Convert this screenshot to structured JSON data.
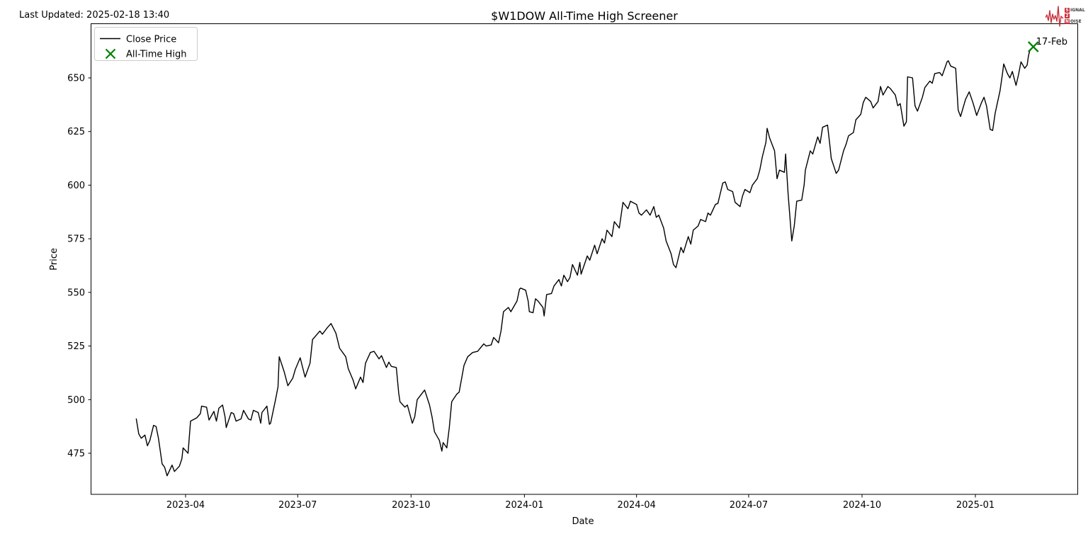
{
  "header": {
    "last_updated": "Last Updated: 2025-02-18 13:40",
    "title": "$W1DOW All-Time High Screener"
  },
  "logo": {
    "red": "#c62f39",
    "rows": [
      {
        "boxed": "S",
        "rest": "IGNAL"
      },
      {
        "boxed": "2",
        "rest": ""
      },
      {
        "boxed": "N",
        "rest": "OISE"
      }
    ]
  },
  "chart_data": {
    "type": "line",
    "title": "$W1DOW All-Time High Screener",
    "xlabel": "Date",
    "ylabel": "Price",
    "line_color": "#000000",
    "ath_color": "#008000",
    "ylim": [
      454,
      676
    ],
    "yticks": [
      475,
      500,
      525,
      550,
      575,
      600,
      625,
      650
    ],
    "xticks": [
      {
        "label": "2023-04",
        "date": "2023-04-01"
      },
      {
        "label": "2023-07",
        "date": "2023-07-01"
      },
      {
        "label": "2023-10",
        "date": "2023-10-01"
      },
      {
        "label": "2024-01",
        "date": "2024-01-01"
      },
      {
        "label": "2024-04",
        "date": "2024-04-01"
      },
      {
        "label": "2024-07",
        "date": "2024-07-01"
      },
      {
        "label": "2024-10",
        "date": "2024-10-01"
      },
      {
        "label": "2025-01",
        "date": "2025-01-01"
      }
    ],
    "legend": [
      {
        "label": "Close Price",
        "type": "line",
        "color": "#000000"
      },
      {
        "label": "All-Time High",
        "type": "x-marker",
        "color": "#008000"
      }
    ],
    "all_time_high": {
      "date": "2025-02-17",
      "value": 664.5,
      "label": "17-Feb"
    },
    "series": [
      {
        "name": "Close Price",
        "color": "#000000",
        "points": [
          [
            "2023-02-20",
            491
          ],
          [
            "2023-02-22",
            484
          ],
          [
            "2023-02-24",
            482
          ],
          [
            "2023-02-27",
            483.5
          ],
          [
            "2023-03-01",
            478.5
          ],
          [
            "2023-03-03",
            481
          ],
          [
            "2023-03-06",
            488
          ],
          [
            "2023-03-08",
            487.5
          ],
          [
            "2023-03-10",
            482
          ],
          [
            "2023-03-13",
            470
          ],
          [
            "2023-03-15",
            468.5
          ],
          [
            "2023-03-17",
            464.5
          ],
          [
            "2023-03-21",
            469.5
          ],
          [
            "2023-03-23",
            466.5
          ],
          [
            "2023-03-27",
            469
          ],
          [
            "2023-03-29",
            472.5
          ],
          [
            "2023-03-30",
            477.5
          ],
          [
            "2023-04-03",
            475
          ],
          [
            "2023-04-05",
            490
          ],
          [
            "2023-04-10",
            491.5
          ],
          [
            "2023-04-13",
            493.5
          ],
          [
            "2023-04-14",
            497
          ],
          [
            "2023-04-18",
            496.5
          ],
          [
            "2023-04-20",
            490.5
          ],
          [
            "2023-04-24",
            494.5
          ],
          [
            "2023-04-26",
            490
          ],
          [
            "2023-04-28",
            496
          ],
          [
            "2023-05-01",
            497.5
          ],
          [
            "2023-05-03",
            492
          ],
          [
            "2023-05-04",
            487
          ],
          [
            "2023-05-08",
            494
          ],
          [
            "2023-05-10",
            493.5
          ],
          [
            "2023-05-12",
            490
          ],
          [
            "2023-05-16",
            491
          ],
          [
            "2023-05-18",
            495
          ],
          [
            "2023-05-22",
            491
          ],
          [
            "2023-05-24",
            490.5
          ],
          [
            "2023-05-26",
            495
          ],
          [
            "2023-05-30",
            494
          ],
          [
            "2023-06-01",
            489
          ],
          [
            "2023-06-02",
            494
          ],
          [
            "2023-06-06",
            497
          ],
          [
            "2023-06-08",
            488.5
          ],
          [
            "2023-06-09",
            489
          ],
          [
            "2023-06-13",
            500
          ],
          [
            "2023-06-15",
            506
          ],
          [
            "2023-06-16",
            520
          ],
          [
            "2023-06-20",
            513
          ],
          [
            "2023-06-23",
            506.5
          ],
          [
            "2023-06-27",
            510
          ],
          [
            "2023-06-29",
            514
          ],
          [
            "2023-07-03",
            519.5
          ],
          [
            "2023-07-07",
            510.5
          ],
          [
            "2023-07-11",
            517
          ],
          [
            "2023-07-13",
            528
          ],
          [
            "2023-07-19",
            532
          ],
          [
            "2023-07-21",
            530.5
          ],
          [
            "2023-07-25",
            533.5
          ],
          [
            "2023-07-28",
            535.5
          ],
          [
            "2023-08-01",
            531
          ],
          [
            "2023-08-04",
            524
          ],
          [
            "2023-08-09",
            520
          ],
          [
            "2023-08-11",
            514.5
          ],
          [
            "2023-08-15",
            509
          ],
          [
            "2023-08-17",
            505
          ],
          [
            "2023-08-21",
            510.5
          ],
          [
            "2023-08-23",
            508
          ],
          [
            "2023-08-25",
            517
          ],
          [
            "2023-08-29",
            522
          ],
          [
            "2023-09-01",
            522.5
          ],
          [
            "2023-09-05",
            519
          ],
          [
            "2023-09-07",
            520.5
          ],
          [
            "2023-09-11",
            515
          ],
          [
            "2023-09-13",
            517.5
          ],
          [
            "2023-09-15",
            515.5
          ],
          [
            "2023-09-19",
            515
          ],
          [
            "2023-09-21",
            503
          ],
          [
            "2023-09-22",
            499
          ],
          [
            "2023-09-26",
            496.5
          ],
          [
            "2023-09-28",
            497.5
          ],
          [
            "2023-10-02",
            489
          ],
          [
            "2023-10-04",
            492
          ],
          [
            "2023-10-06",
            500
          ],
          [
            "2023-10-10",
            503
          ],
          [
            "2023-10-12",
            504.5
          ],
          [
            "2023-10-16",
            497.5
          ],
          [
            "2023-10-18",
            492
          ],
          [
            "2023-10-20",
            485
          ],
          [
            "2023-10-24",
            481
          ],
          [
            "2023-10-26",
            476
          ],
          [
            "2023-10-27",
            480
          ],
          [
            "2023-10-30",
            477.5
          ],
          [
            "2023-11-01",
            487
          ],
          [
            "2023-11-03",
            499
          ],
          [
            "2023-11-07",
            502.5
          ],
          [
            "2023-11-09",
            503.5
          ],
          [
            "2023-11-13",
            516
          ],
          [
            "2023-11-16",
            520
          ],
          [
            "2023-11-20",
            522
          ],
          [
            "2023-11-24",
            522.5
          ],
          [
            "2023-11-29",
            526
          ],
          [
            "2023-12-01",
            525
          ],
          [
            "2023-12-05",
            525.5
          ],
          [
            "2023-12-07",
            529
          ],
          [
            "2023-12-11",
            526.5
          ],
          [
            "2023-12-13",
            532
          ],
          [
            "2023-12-15",
            541
          ],
          [
            "2023-12-19",
            543
          ],
          [
            "2023-12-21",
            541
          ],
          [
            "2023-12-26",
            546
          ],
          [
            "2023-12-28",
            551.5
          ],
          [
            "2023-12-29",
            552
          ],
          [
            "2024-01-02",
            551
          ],
          [
            "2024-01-04",
            546
          ],
          [
            "2024-01-05",
            541
          ],
          [
            "2024-01-08",
            540.5
          ],
          [
            "2024-01-10",
            547
          ],
          [
            "2024-01-12",
            546
          ],
          [
            "2024-01-16",
            543
          ],
          [
            "2024-01-17",
            539
          ],
          [
            "2024-01-19",
            549
          ],
          [
            "2024-01-23",
            549.5
          ],
          [
            "2024-01-25",
            553
          ],
          [
            "2024-01-29",
            556
          ],
          [
            "2024-01-31",
            553
          ],
          [
            "2024-02-02",
            558
          ],
          [
            "2024-02-05",
            555
          ],
          [
            "2024-02-07",
            557
          ],
          [
            "2024-02-09",
            563
          ],
          [
            "2024-02-13",
            558
          ],
          [
            "2024-02-15",
            564
          ],
          [
            "2024-02-16",
            558.5
          ],
          [
            "2024-02-21",
            567
          ],
          [
            "2024-02-23",
            565
          ],
          [
            "2024-02-27",
            572
          ],
          [
            "2024-02-29",
            568
          ],
          [
            "2024-03-04",
            575
          ],
          [
            "2024-03-06",
            573
          ],
          [
            "2024-03-08",
            579
          ],
          [
            "2024-03-12",
            576
          ],
          [
            "2024-03-14",
            583
          ],
          [
            "2024-03-18",
            580
          ],
          [
            "2024-03-21",
            592
          ],
          [
            "2024-03-25",
            589
          ],
          [
            "2024-03-27",
            592.5
          ],
          [
            "2024-04-01",
            591
          ],
          [
            "2024-04-03",
            587
          ],
          [
            "2024-04-05",
            586
          ],
          [
            "2024-04-09",
            588.5
          ],
          [
            "2024-04-12",
            586
          ],
          [
            "2024-04-15",
            590
          ],
          [
            "2024-04-17",
            585
          ],
          [
            "2024-04-19",
            586
          ],
          [
            "2024-04-23",
            580
          ],
          [
            "2024-04-25",
            574
          ],
          [
            "2024-04-29",
            568
          ],
          [
            "2024-05-01",
            563
          ],
          [
            "2024-05-03",
            561.5
          ],
          [
            "2024-05-07",
            571
          ],
          [
            "2024-05-09",
            568.5
          ],
          [
            "2024-05-13",
            576
          ],
          [
            "2024-05-15",
            572.5
          ],
          [
            "2024-05-17",
            579
          ],
          [
            "2024-05-21",
            581
          ],
          [
            "2024-05-23",
            584
          ],
          [
            "2024-05-27",
            583
          ],
          [
            "2024-05-29",
            587
          ],
          [
            "2024-05-31",
            586
          ],
          [
            "2024-06-04",
            591
          ],
          [
            "2024-06-06",
            591.5
          ],
          [
            "2024-06-10",
            601
          ],
          [
            "2024-06-12",
            601.5
          ],
          [
            "2024-06-14",
            598
          ],
          [
            "2024-06-18",
            597
          ],
          [
            "2024-06-20",
            592
          ],
          [
            "2024-06-24",
            590
          ],
          [
            "2024-06-26",
            595
          ],
          [
            "2024-06-28",
            598
          ],
          [
            "2024-07-02",
            596.5
          ],
          [
            "2024-07-04",
            600
          ],
          [
            "2024-07-08",
            603
          ],
          [
            "2024-07-10",
            607
          ],
          [
            "2024-07-12",
            613
          ],
          [
            "2024-07-15",
            620
          ],
          [
            "2024-07-16",
            626.5
          ],
          [
            "2024-07-18",
            622
          ],
          [
            "2024-07-22",
            616
          ],
          [
            "2024-07-24",
            603
          ],
          [
            "2024-07-26",
            607
          ],
          [
            "2024-07-30",
            606
          ],
          [
            "2024-07-31",
            614.5
          ],
          [
            "2024-08-02",
            596
          ],
          [
            "2024-08-05",
            574
          ],
          [
            "2024-08-07",
            581
          ],
          [
            "2024-08-09",
            592.5
          ],
          [
            "2024-08-13",
            593
          ],
          [
            "2024-08-15",
            600
          ],
          [
            "2024-08-16",
            607
          ],
          [
            "2024-08-20",
            616
          ],
          [
            "2024-08-22",
            614.5
          ],
          [
            "2024-08-26",
            622.5
          ],
          [
            "2024-08-28",
            619.5
          ],
          [
            "2024-08-30",
            627
          ],
          [
            "2024-09-03",
            628
          ],
          [
            "2024-09-05",
            618
          ],
          [
            "2024-09-06",
            612.5
          ],
          [
            "2024-09-10",
            605.5
          ],
          [
            "2024-09-12",
            607
          ],
          [
            "2024-09-16",
            616
          ],
          [
            "2024-09-18",
            619
          ],
          [
            "2024-09-20",
            623
          ],
          [
            "2024-09-24",
            624.5
          ],
          [
            "2024-09-26",
            630.5
          ],
          [
            "2024-09-30",
            633
          ],
          [
            "2024-10-02",
            638.5
          ],
          [
            "2024-10-04",
            641
          ],
          [
            "2024-10-08",
            639
          ],
          [
            "2024-10-10",
            636
          ],
          [
            "2024-10-14",
            639
          ],
          [
            "2024-10-16",
            646
          ],
          [
            "2024-10-18",
            642
          ],
          [
            "2024-10-22",
            646
          ],
          [
            "2024-10-24",
            645
          ],
          [
            "2024-10-28",
            642
          ],
          [
            "2024-10-30",
            637
          ],
          [
            "2024-11-01",
            638
          ],
          [
            "2024-11-04",
            627.5
          ],
          [
            "2024-11-06",
            629.5
          ],
          [
            "2024-11-07",
            650.5
          ],
          [
            "2024-11-11",
            650
          ],
          [
            "2024-11-13",
            637
          ],
          [
            "2024-11-15",
            634.5
          ],
          [
            "2024-11-19",
            641
          ],
          [
            "2024-11-21",
            645.5
          ],
          [
            "2024-11-25",
            648.5
          ],
          [
            "2024-11-27",
            647.5
          ],
          [
            "2024-11-29",
            652
          ],
          [
            "2024-12-03",
            652.5
          ],
          [
            "2024-12-05",
            651
          ],
          [
            "2024-12-09",
            657.5
          ],
          [
            "2024-12-10",
            658
          ],
          [
            "2024-12-12",
            655.5
          ],
          [
            "2024-12-16",
            654.5
          ],
          [
            "2024-12-18",
            635
          ],
          [
            "2024-12-20",
            632
          ],
          [
            "2024-12-24",
            640
          ],
          [
            "2024-12-27",
            643.5
          ],
          [
            "2024-12-30",
            638.5
          ],
          [
            "2025-01-02",
            632.5
          ],
          [
            "2025-01-06",
            638.5
          ],
          [
            "2025-01-08",
            641
          ],
          [
            "2025-01-10",
            637
          ],
          [
            "2025-01-13",
            626
          ],
          [
            "2025-01-15",
            625.5
          ],
          [
            "2025-01-17",
            633.5
          ],
          [
            "2025-01-21",
            644
          ],
          [
            "2025-01-23",
            652
          ],
          [
            "2025-01-24",
            656.5
          ],
          [
            "2025-01-27",
            652
          ],
          [
            "2025-01-29",
            650
          ],
          [
            "2025-01-31",
            653
          ],
          [
            "2025-02-03",
            646.5
          ],
          [
            "2025-02-05",
            651.5
          ],
          [
            "2025-02-07",
            657.5
          ],
          [
            "2025-02-10",
            654.5
          ],
          [
            "2025-02-12",
            656
          ],
          [
            "2025-02-13",
            660
          ],
          [
            "2025-02-14",
            662.5
          ],
          [
            "2025-02-17",
            664.5
          ]
        ]
      }
    ]
  }
}
